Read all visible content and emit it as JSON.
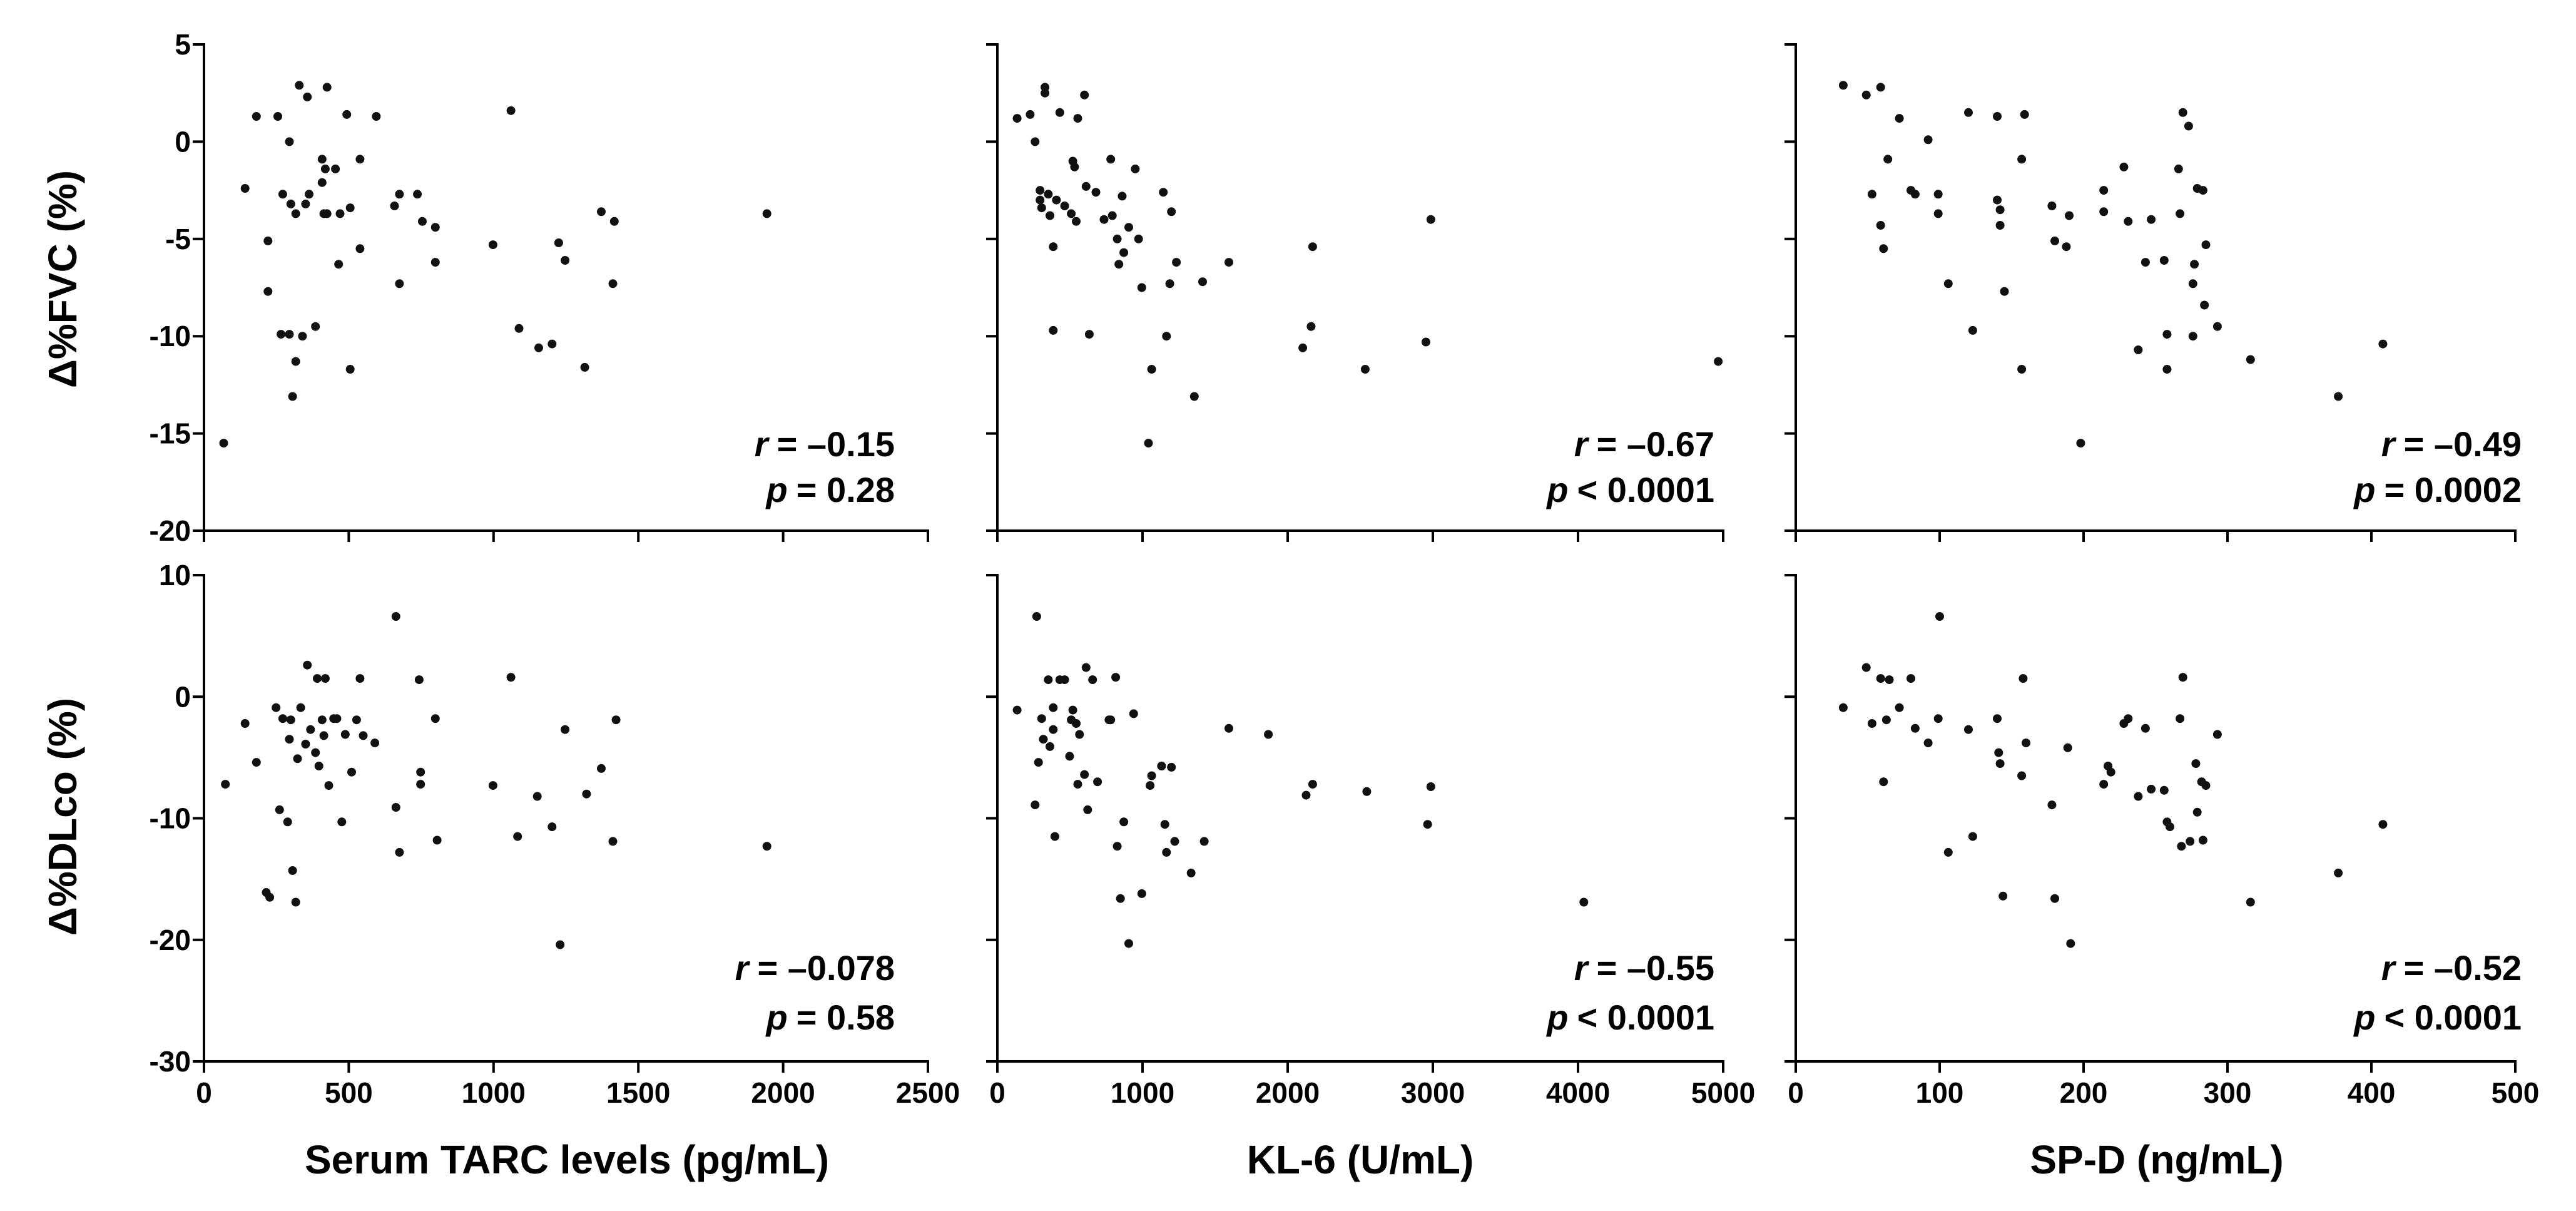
{
  "style": {
    "marker_color": "#111111",
    "axis_color": "#000000",
    "background": "#ffffff"
  },
  "chart_data": [
    {
      "type": "scatter",
      "grid": false,
      "ylabel": "Δ%FVC (%)",
      "xlim": [
        0,
        2500
      ],
      "ylim": [
        -20,
        5
      ],
      "xticks": [
        0,
        500,
        1000,
        1500,
        2000,
        2500
      ],
      "yticks": [
        -20,
        -15,
        -10,
        -5,
        0,
        5
      ],
      "ytick_labels": [
        "-20",
        "-15",
        "-10",
        "-5",
        "0",
        "5"
      ],
      "x": [
        68,
        142,
        181,
        221,
        221,
        255,
        266,
        272,
        295,
        295,
        300,
        306,
        317,
        317,
        329,
        340,
        357,
        351,
        363,
        385,
        408,
        408,
        414,
        419,
        425,
        425,
        454,
        465,
        470,
        493,
        505,
        505,
        539,
        539,
        595,
        658,
        675,
        675,
        737,
        754,
        799,
        799,
        998,
        1060,
        1088,
        1156,
        1202,
        1225,
        1247,
        1315,
        1372,
        1412,
        1417,
        1944
      ],
      "y": [
        -15.5,
        -2.4,
        1.3,
        -5.1,
        -7.7,
        1.3,
        -9.9,
        -2.7,
        0.0,
        -9.9,
        -3.2,
        -13.1,
        -3.7,
        -11.3,
        2.9,
        -10.0,
        2.3,
        -3.2,
        -2.7,
        -9.5,
        -0.9,
        -2.1,
        -3.7,
        -1.4,
        2.8,
        -3.7,
        -1.4,
        -6.3,
        -3.7,
        1.4,
        -3.4,
        -11.7,
        -0.9,
        -5.5,
        1.3,
        -3.3,
        -7.3,
        -2.7,
        -2.7,
        -4.1,
        -4.4,
        -6.2,
        -5.3,
        1.6,
        -9.6,
        -10.6,
        -10.4,
        -5.2,
        -6.1,
        -11.6,
        -3.6,
        -7.3,
        -4.1,
        -3.7
      ],
      "stats": [
        {
          "symbol": "r",
          "text": "= –0.15"
        },
        {
          "symbol": "p",
          "text": "= 0.28"
        }
      ]
    },
    {
      "type": "scatter",
      "grid": false,
      "xlim": [
        0,
        5000
      ],
      "ylim": [
        -20,
        5
      ],
      "xticks": [
        0,
        1000,
        2000,
        3000,
        4000,
        5000
      ],
      "yticks": [
        -20,
        -15,
        -10,
        -5,
        0,
        5
      ],
      "x": [
        136,
        226,
        260,
        294,
        294,
        305,
        328,
        328,
        351,
        362,
        385,
        385,
        407,
        430,
        464,
        509,
        520,
        532,
        543,
        554,
        600,
        611,
        633,
        679,
        735,
        781,
        792,
        826,
        837,
        860,
        871,
        905,
        950,
        973,
        995,
        1041,
        1063,
        1143,
        1165,
        1188,
        1199,
        1233,
        1357,
        1414,
        1595,
        2104,
        2161,
        2172,
        2534,
        2952,
        2986,
        4966
      ],
      "y": [
        1.2,
        1.4,
        0.0,
        -3.0,
        -2.5,
        -3.4,
        2.5,
        2.8,
        -2.7,
        -3.8,
        -5.4,
        -9.7,
        -3.0,
        1.5,
        -3.3,
        -3.7,
        -1.0,
        -1.3,
        -4.1,
        1.2,
        2.4,
        -2.3,
        -9.9,
        -2.6,
        -4.0,
        -0.9,
        -3.8,
        -5.0,
        -6.3,
        -2.8,
        -5.7,
        -4.4,
        -1.4,
        -5.0,
        -7.5,
        -15.5,
        -11.7,
        -2.6,
        -10.0,
        -7.3,
        -3.6,
        -6.2,
        -13.1,
        -7.2,
        -6.2,
        -10.6,
        -9.5,
        -5.4,
        -11.7,
        -10.3,
        -4.0,
        -11.3
      ],
      "stats": [
        {
          "symbol": "r",
          "text": "= –0.67"
        },
        {
          "symbol": "p",
          "text": "< 0.0001"
        }
      ]
    },
    {
      "type": "scatter",
      "grid": false,
      "xlim": [
        0,
        500
      ],
      "ylim": [
        -20,
        5
      ],
      "xticks": [
        0,
        100,
        200,
        300,
        400,
        500
      ],
      "yticks": [
        -20,
        -15,
        -10,
        -5,
        0,
        5
      ],
      "x": [
        33,
        49,
        59,
        53,
        59,
        61,
        64,
        72,
        80,
        83,
        92,
        99,
        99,
        106,
        120,
        123,
        140,
        140,
        142,
        142,
        145,
        157,
        157,
        159,
        178,
        180,
        188,
        190,
        198,
        214,
        214,
        228,
        231,
        238,
        243,
        247,
        256,
        258,
        258,
        266,
        267,
        269,
        273,
        276,
        276,
        277,
        279,
        283,
        284,
        285,
        293,
        316,
        377,
        408
      ],
      "y": [
        2.9,
        2.4,
        2.8,
        -2.7,
        -4.3,
        -5.5,
        -0.9,
        1.2,
        -2.5,
        -2.7,
        0.1,
        -2.7,
        -3.7,
        -7.3,
        1.5,
        -9.7,
        1.3,
        -3.0,
        -3.5,
        -4.3,
        -7.7,
        -0.9,
        -11.7,
        1.4,
        -3.3,
        -5.1,
        -5.4,
        -3.8,
        -15.5,
        -2.5,
        -3.6,
        -1.3,
        -4.1,
        -10.7,
        -6.2,
        -4.0,
        -6.1,
        -9.9,
        -11.7,
        -1.4,
        -3.7,
        1.5,
        0.8,
        -10.0,
        -7.3,
        -6.3,
        -2.4,
        -2.5,
        -8.4,
        -5.3,
        -9.5,
        -11.2,
        -13.1,
        -10.4
      ],
      "stats": [
        {
          "symbol": "r",
          "text": "= –0.49"
        },
        {
          "symbol": "p",
          "text": "= 0.0002"
        }
      ]
    },
    {
      "type": "scatter",
      "grid": false,
      "xlabel": "Serum TARC levels (pg/mL)",
      "ylabel": "Δ%DLco (%)",
      "xlim": [
        0,
        2500
      ],
      "ylim": [
        -30,
        10
      ],
      "xticks": [
        0,
        500,
        1000,
        1500,
        2000,
        2500
      ],
      "xtick_labels": [
        "0",
        "500",
        "1000",
        "1500",
        "2000",
        "2500"
      ],
      "yticks": [
        -30,
        -20,
        -10,
        0,
        10
      ],
      "ytick_labels": [
        "-30",
        "-20",
        "-10",
        "0",
        "10"
      ],
      "x": [
        74,
        142,
        181,
        215,
        227,
        249,
        261,
        272,
        289,
        295,
        300,
        306,
        317,
        323,
        334,
        351,
        357,
        368,
        385,
        391,
        397,
        408,
        414,
        419,
        431,
        448,
        459,
        476,
        488,
        510,
        527,
        539,
        550,
        590,
        663,
        663,
        675,
        743,
        748,
        748,
        799,
        805,
        998,
        1060,
        1083,
        1151,
        1202,
        1230,
        1247,
        1321,
        1372,
        1412,
        1423,
        1944
      ],
      "y": [
        -7.2,
        -2.2,
        -5.4,
        -16.1,
        -16.5,
        -0.9,
        -9.3,
        -1.8,
        -10.3,
        -3.5,
        -1.9,
        -14.3,
        -16.9,
        -5.1,
        -0.9,
        -3.9,
        2.6,
        -2.7,
        -4.6,
        1.5,
        -5.7,
        -1.9,
        -3.2,
        1.5,
        -7.3,
        -1.8,
        -1.8,
        -10.3,
        -3.1,
        -6.2,
        -1.9,
        1.5,
        -3.2,
        -3.8,
        6.6,
        -9.1,
        -12.8,
        1.4,
        -6.2,
        -7.2,
        -1.8,
        -11.8,
        -7.3,
        1.6,
        -11.5,
        -8.2,
        -10.7,
        -20.4,
        -2.7,
        -8.0,
        -5.9,
        -11.9,
        -1.9,
        -12.3
      ],
      "stats": [
        {
          "symbol": "r",
          "text": "= –0.078"
        },
        {
          "symbol": "p",
          "text": "= 0.58"
        }
      ]
    },
    {
      "type": "scatter",
      "grid": false,
      "xlabel": "KL-6 (U/mL)",
      "xlim": [
        0,
        5000
      ],
      "ylim": [
        -30,
        10
      ],
      "xticks": [
        0,
        1000,
        2000,
        3000,
        4000,
        5000
      ],
      "xtick_labels": [
        "0",
        "1000",
        "2000",
        "3000",
        "4000",
        "5000"
      ],
      "yticks": [
        -30,
        -20,
        -10,
        0,
        10
      ],
      "x": [
        136,
        260,
        271,
        283,
        305,
        317,
        351,
        362,
        385,
        385,
        396,
        430,
        464,
        498,
        509,
        520,
        543,
        554,
        566,
        600,
        611,
        622,
        656,
        690,
        769,
        781,
        815,
        826,
        848,
        871,
        939,
        905,
        995,
        1052,
        1063,
        1131,
        1154,
        1165,
        1199,
        1222,
        1335,
        1425,
        1595,
        1867,
        2127,
        2172,
        2545,
        2964,
        2986,
        4040
      ],
      "y": [
        -1.1,
        -8.9,
        6.6,
        -5.4,
        -1.8,
        -3.5,
        1.4,
        -4.1,
        -0.9,
        -2.7,
        -11.5,
        1.4,
        1.4,
        -4.9,
        -1.9,
        -1.1,
        -2.2,
        -7.2,
        -3.1,
        -6.4,
        2.4,
        -9.3,
        1.4,
        -7.0,
        -1.9,
        -1.9,
        1.6,
        -12.3,
        -16.6,
        -10.3,
        -1.4,
        -20.3,
        -16.2,
        -7.3,
        -6.5,
        -5.7,
        -10.5,
        -12.8,
        -5.8,
        -11.9,
        -14.5,
        -11.9,
        -2.6,
        -3.1,
        -8.1,
        -7.2,
        -7.8,
        -10.5,
        -7.4,
        -16.9
      ],
      "stats": [
        {
          "symbol": "r",
          "text": "= –0.55"
        },
        {
          "symbol": "p",
          "text": "< 0.0001"
        }
      ]
    },
    {
      "type": "scatter",
      "grid": false,
      "xlabel": "SP-D (ng/mL)",
      "xlim": [
        0,
        500
      ],
      "ylim": [
        -30,
        10
      ],
      "xticks": [
        0,
        100,
        200,
        300,
        400,
        500
      ],
      "xtick_labels": [
        "0",
        "100",
        "200",
        "300",
        "400",
        "500"
      ],
      "yticks": [
        -30,
        -20,
        -10,
        0,
        10
      ],
      "x": [
        33,
        49,
        53,
        59,
        61,
        63,
        65,
        72,
        80,
        83,
        92,
        99,
        100,
        106,
        120,
        123,
        140,
        141,
        142,
        144,
        157,
        158,
        160,
        178,
        180,
        189,
        191,
        214,
        217,
        219,
        228,
        231,
        238,
        243,
        247,
        256,
        258,
        260,
        267,
        268,
        269,
        274,
        278,
        279,
        282,
        283,
        285,
        293,
        316,
        377,
        408
      ],
      "y": [
        -0.9,
        2.4,
        -2.2,
        1.5,
        -7.0,
        -1.9,
        1.4,
        -0.9,
        1.5,
        -2.6,
        -3.8,
        -1.8,
        6.6,
        -12.8,
        -2.7,
        -11.5,
        -1.8,
        -4.6,
        -5.5,
        -16.4,
        -6.5,
        1.5,
        -3.8,
        -8.9,
        -16.6,
        -4.2,
        -20.3,
        -7.2,
        -5.7,
        -6.2,
        -2.2,
        -1.8,
        -8.2,
        -2.6,
        -7.6,
        -7.7,
        -10.3,
        -10.7,
        -1.8,
        -12.3,
        1.6,
        -11.9,
        -5.5,
        -9.5,
        -7.0,
        -11.8,
        -7.3,
        -3.1,
        -16.9,
        -14.5,
        -10.5
      ],
      "stats": [
        {
          "symbol": "r",
          "text": "= –0.52"
        },
        {
          "symbol": "p",
          "text": "< 0.0001"
        }
      ]
    }
  ]
}
